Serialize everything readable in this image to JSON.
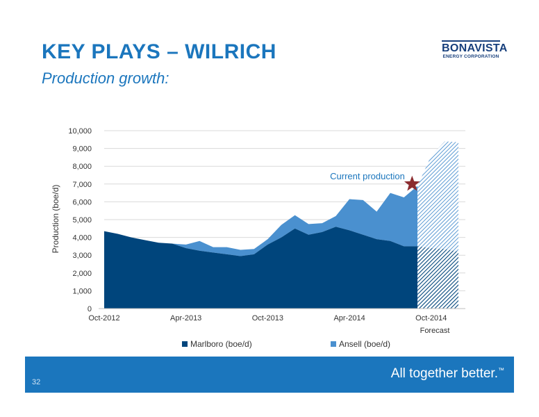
{
  "header": {
    "title": "KEY PLAYS – WILRICH",
    "subtitle": "Production growth:"
  },
  "logo": {
    "line1": "BONAVISTA",
    "line2": "ENERGY CORPORATION"
  },
  "colors": {
    "marlboro": "#00457c",
    "ansell": "#4a90cf",
    "title": "#1b76bd",
    "footer": "#1b76bd",
    "star": "#8b2c2f"
  },
  "chart_data": {
    "type": "area",
    "ylabel": "Production (boe/d)",
    "ylim": [
      0,
      10000
    ],
    "yticks": [
      0,
      1000,
      2000,
      3000,
      4000,
      5000,
      6000,
      7000,
      8000,
      9000,
      10000
    ],
    "ytick_labels": [
      "0",
      "1,000",
      "2,000",
      "3,000",
      "4,000",
      "5,000",
      "6,000",
      "7,000",
      "8,000",
      "9,000",
      "10,000"
    ],
    "x": [
      "Oct-2012",
      "Nov-2012",
      "Dec-2012",
      "Jan-2013",
      "Feb-2013",
      "Mar-2013",
      "Apr-2013",
      "May-2013",
      "Jun-2013",
      "Jul-2013",
      "Aug-2013",
      "Sep-2013",
      "Oct-2013",
      "Nov-2013",
      "Dec-2013",
      "Jan-2014",
      "Feb-2014",
      "Mar-2014",
      "Apr-2014",
      "May-2014",
      "Jun-2014",
      "Jul-2014",
      "Aug-2014",
      "Sep-2014",
      "Oct-2014",
      "Nov-2014",
      "Dec-2014"
    ],
    "xtick_labels": [
      "Oct-2012",
      "Apr-2013",
      "Oct-2013",
      "Apr-2014",
      "Oct-2014"
    ],
    "xtick_label_indices": [
      0,
      6,
      12,
      18,
      24
    ],
    "series": [
      {
        "name": "Marlboro (boe/d)",
        "values": [
          4350,
          4200,
          4000,
          3850,
          3700,
          3650,
          3400,
          3250,
          3150,
          3050,
          2950,
          3050,
          3600,
          4000,
          4500,
          4150,
          4300,
          4600,
          4400,
          4150,
          3900,
          3800,
          3500,
          3500,
          3400,
          3350,
          3200
        ]
      },
      {
        "name": "Ansell (boe/d)",
        "values": [
          0,
          0,
          0,
          0,
          0,
          0,
          200,
          550,
          300,
          400,
          350,
          300,
          300,
          700,
          750,
          600,
          500,
          600,
          1750,
          1950,
          1550,
          2700,
          2750,
          3400,
          5200,
          6050,
          6150
        ]
      }
    ],
    "forecast_start_index": 23,
    "forecast_label": "Forecast",
    "annotation": {
      "text": "Current production",
      "x_index": 22.6,
      "y": 7000
    },
    "legend_position": "bottom",
    "grid": true
  },
  "footer": {
    "tagline": "All together better.",
    "trademark": "™",
    "page_number": "32"
  }
}
